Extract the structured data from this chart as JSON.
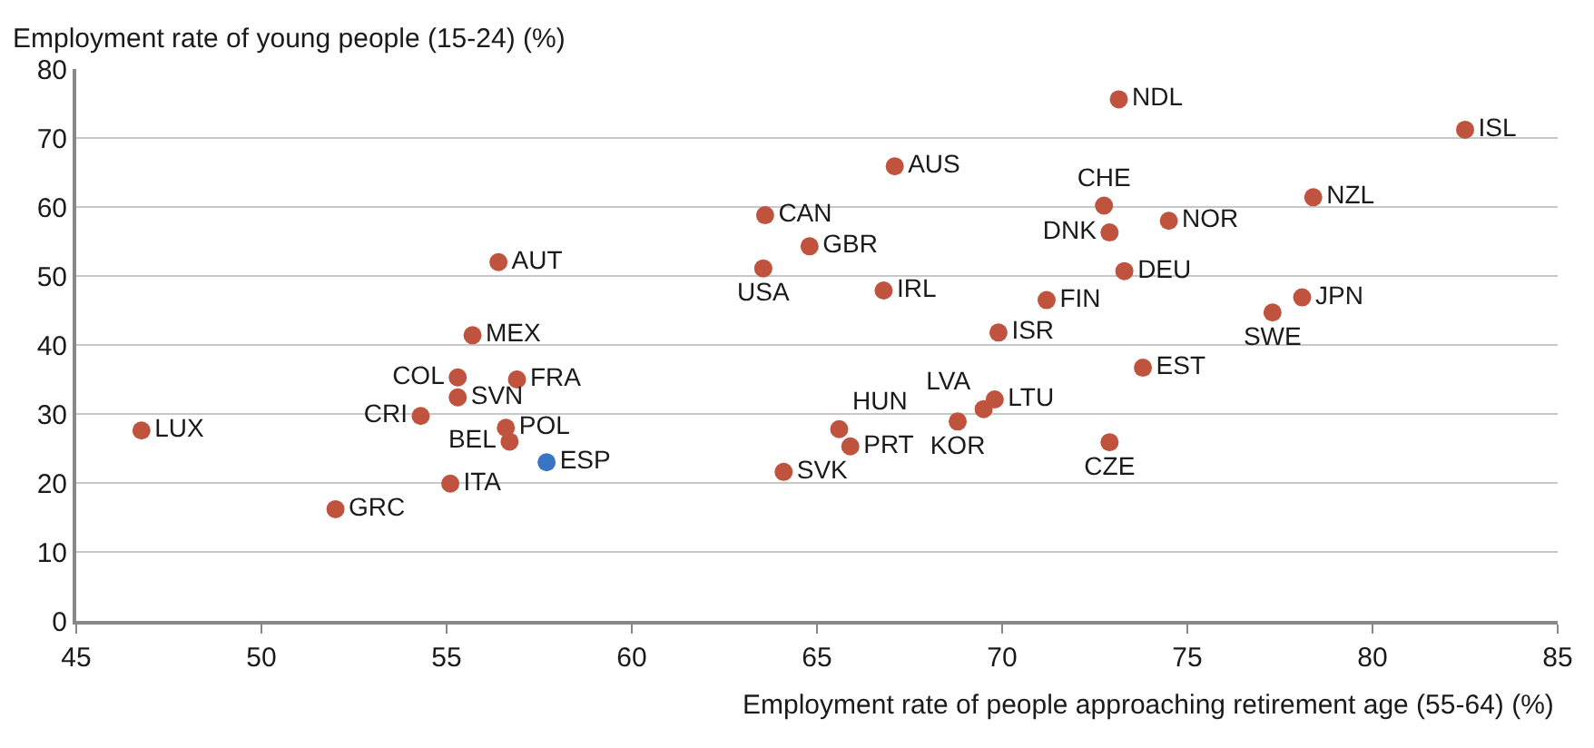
{
  "chart_data": {
    "type": "scatter",
    "xlabel": "Employment rate of people approaching retirement age (55-64) (%)",
    "ylabel": "Employment rate of young people (15-24) (%)",
    "xlim": [
      45,
      85
    ],
    "xticks": [
      45,
      50,
      55,
      60,
      65,
      70,
      75,
      80,
      85
    ],
    "ylim": [
      0,
      80
    ],
    "yticks": [
      0,
      10,
      20,
      30,
      40,
      50,
      60,
      70,
      80
    ],
    "grid": "y",
    "marker": "circle",
    "series": [
      {
        "x": [
          46.76,
          52.0,
          54.3,
          55.3,
          55.3,
          55.1,
          55.7,
          56.4,
          56.9,
          56.6,
          56.7,
          57.7,
          63.55,
          63.6,
          64.8,
          67.1,
          66.8,
          64.1,
          65.6,
          65.9,
          68.8,
          69.5,
          69.8,
          69.9,
          71.2,
          73.15,
          72.75,
          72.9,
          74.5,
          73.3,
          73.8,
          72.9,
          78.4,
          78.1,
          77.3,
          82.5
        ],
        "values": [
          27.6,
          16.2,
          29.7,
          35.3,
          32.4,
          19.9,
          41.4,
          52.0,
          35.0,
          28.0,
          26.0,
          23.0,
          51.1,
          58.8,
          54.3,
          65.9,
          47.9,
          21.6,
          27.8,
          25.3,
          28.9,
          30.7,
          32.1,
          41.8,
          46.5,
          75.6,
          60.2,
          56.3,
          58.0,
          50.7,
          36.7,
          25.9,
          61.4,
          46.9,
          44.7,
          71.2
        ],
        "value_labels": [
          "LUX",
          "GRC",
          "CRI",
          "COL",
          "SVN",
          "ITA",
          "MEX",
          "AUT",
          "FRA",
          "POL",
          "BEL",
          "ESP",
          "USA",
          "CAN",
          "GBR",
          "AUS",
          "IRL",
          "SVK",
          "HUN",
          "PRT",
          "KOR",
          "LVA",
          "LTU",
          "ISR",
          "FIN",
          "NDL",
          "CHE",
          "DNK",
          "NOR",
          "DEU",
          "EST",
          "CZE",
          "NZL",
          "JPN",
          "SWE",
          "ISL"
        ],
        "colors": [
          "#c0533d",
          "#c0533d",
          "#c0533d",
          "#c0533d",
          "#c0533d",
          "#c0533d",
          "#c0533d",
          "#c0533d",
          "#c0533d",
          "#c0533d",
          "#c0533d",
          "#3a75c4",
          "#c0533d",
          "#c0533d",
          "#c0533d",
          "#c0533d",
          "#c0533d",
          "#c0533d",
          "#c0533d",
          "#c0533d",
          "#c0533d",
          "#c0533d",
          "#c0533d",
          "#c0533d",
          "#c0533d",
          "#c0533d",
          "#c0533d",
          "#c0533d",
          "#c0533d",
          "#c0533d",
          "#c0533d",
          "#c0533d",
          "#c0533d",
          "#c0533d",
          "#c0533d",
          "#c0533d"
        ]
      }
    ]
  }
}
